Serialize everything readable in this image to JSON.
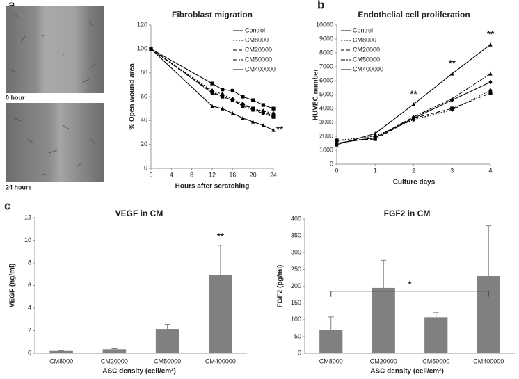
{
  "panel_labels": [
    "a",
    "b",
    "c"
  ],
  "image_labels": [
    "0 hour",
    "24 hours"
  ],
  "chart_data": [
    {
      "type": "line",
      "title": "Fibroblast migration",
      "x_label": "Hours after scratching",
      "y_label": "% Open wound area",
      "x": [
        0,
        12,
        14,
        16,
        18,
        20,
        22,
        24
      ],
      "series": [
        {
          "name": "Control",
          "color": "#000000",
          "dash": "solid",
          "marker": "square",
          "values": [
            100,
            71,
            66,
            65,
            60,
            57,
            53,
            50
          ]
        },
        {
          "name": "CM8000",
          "color": "#000000",
          "dash": "dotted",
          "marker": "diamond",
          "values": [
            100,
            65,
            62,
            58,
            54,
            50,
            48,
            46
          ]
        },
        {
          "name": "CM20000",
          "color": "#000000",
          "dash": "dashed",
          "marker": "square",
          "values": [
            100,
            64,
            60,
            57,
            53,
            50,
            47,
            44
          ]
        },
        {
          "name": "CM50000",
          "color": "#000000",
          "dash": "dashdot",
          "marker": "triangle",
          "values": [
            100,
            63,
            60,
            57,
            52,
            49,
            46,
            43
          ]
        },
        {
          "name": "CM400000",
          "color": "#000000",
          "dash": "solid",
          "marker": "triangle",
          "values": [
            100,
            52,
            50,
            46,
            42,
            39,
            36,
            32
          ]
        }
      ],
      "xlim": [
        0,
        24
      ],
      "xticks": [
        0,
        4,
        8,
        12,
        16,
        20,
        24
      ],
      "ylim": [
        0,
        120
      ],
      "yticks": [
        0,
        20,
        40,
        60,
        80,
        100,
        120
      ],
      "legend": "upper right",
      "grid": false,
      "annotations": [
        {
          "text": "**",
          "x": 24,
          "anchor": "right"
        }
      ]
    },
    {
      "type": "line",
      "title": "Endothelial cell proliferation",
      "x_label": "Culture days",
      "y_label": "HUVEC number",
      "x": [
        0,
        1,
        2,
        3,
        4
      ],
      "series": [
        {
          "name": "Control",
          "color": "#000000",
          "dash": "solid",
          "marker": "diamond",
          "values": [
            1500,
            1900,
            3300,
            4600,
            5900
          ]
        },
        {
          "name": "CM8000",
          "color": "#000000",
          "dash": "dotted",
          "marker": "diamond",
          "values": [
            1700,
            2000,
            3200,
            3900,
            5300
          ]
        },
        {
          "name": "CM20000",
          "color": "#000000",
          "dash": "dashed",
          "marker": "square",
          "values": [
            1700,
            1800,
            3300,
            4000,
            5100
          ]
        },
        {
          "name": "CM50000",
          "color": "#000000",
          "dash": "dashdot",
          "marker": "triangle",
          "values": [
            1500,
            1900,
            3400,
            4700,
            6500
          ]
        },
        {
          "name": "CM400000",
          "color": "#000000",
          "dash": "solid",
          "marker": "triangle",
          "values": [
            1400,
            2200,
            4300,
            6500,
            8600
          ]
        }
      ],
      "xlim": [
        0,
        4
      ],
      "xticks": [
        0,
        1,
        2,
        3,
        4
      ],
      "ylim": [
        0,
        10000
      ],
      "yticks": [
        0,
        1000,
        2000,
        3000,
        4000,
        5000,
        6000,
        7000,
        8000,
        9000,
        10000
      ],
      "legend": "upper left",
      "grid": false,
      "annotations": [
        {
          "text": "**",
          "x": 2,
          "anchor": "above"
        },
        {
          "text": "**",
          "x": 3,
          "anchor": "above"
        },
        {
          "text": "**",
          "x": 4,
          "anchor": "above"
        }
      ]
    },
    {
      "type": "bar",
      "title": "VEGF in CM",
      "x_label": "ASC density (cell/cm²)",
      "y_label": "VEGF (ng/ml)",
      "categories": [
        "CM8000",
        "CM20000",
        "CM50000",
        "CM400000"
      ],
      "values": [
        0.2,
        0.35,
        2.15,
        6.95
      ],
      "errors": [
        0.02,
        0.05,
        0.4,
        2.6
      ],
      "color": "#808080",
      "ylim": [
        0,
        12
      ],
      "yticks": [
        0,
        2,
        4,
        6,
        8,
        10,
        12
      ],
      "grid": false,
      "annotations": [
        {
          "text": "**",
          "category": "CM400000"
        }
      ]
    },
    {
      "type": "bar",
      "title": "FGF2 in CM",
      "x_label": "ASC density (cell/cm²)",
      "y_label": "FGF2 (pg/ml)",
      "categories": [
        "CM8000",
        "CM20000",
        "CM50000",
        "CM400000"
      ],
      "values": [
        70,
        195,
        107,
        230
      ],
      "errors": [
        38,
        82,
        15,
        150
      ],
      "color": "#808080",
      "ylim": [
        0,
        400
      ],
      "yticks": [
        0,
        50,
        100,
        150,
        200,
        250,
        300,
        350,
        400
      ],
      "grid": false,
      "brackets": [
        {
          "text": "*",
          "from": "CM8000",
          "to": "CM400000",
          "y": 185
        }
      ]
    }
  ]
}
